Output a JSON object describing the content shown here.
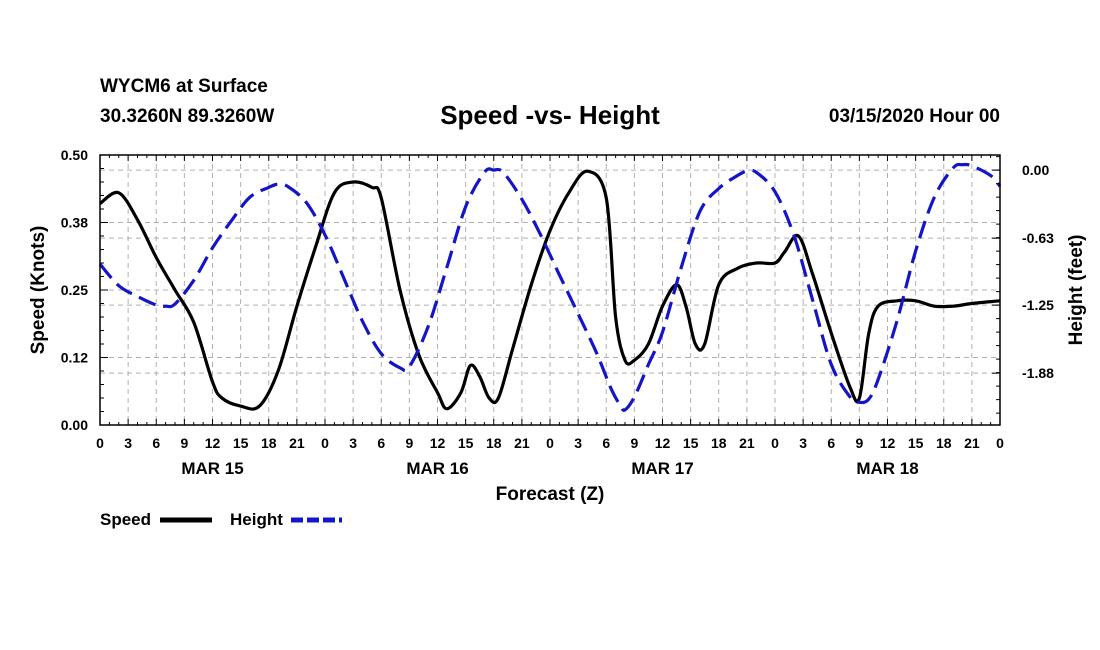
{
  "header": {
    "station": "WYCM6 at Surface",
    "coords": "30.3260N 89.3260W",
    "title": "Speed -vs- Height",
    "run_time": "03/15/2020 Hour 00"
  },
  "legend": {
    "speed_label": "Speed",
    "height_label": "Height"
  },
  "colors": {
    "speed": "#000000",
    "height": "#1515c8",
    "grid": "#b0b0b0"
  },
  "chart_data": {
    "type": "line",
    "title": "Speed -vs- Height",
    "xlabel": "Forecast (Z)",
    "ylabel_left": "Speed (Knots)",
    "ylabel_right": "Height (feet)",
    "xlim": [
      0,
      96
    ],
    "ylim_left": [
      0,
      0.5
    ],
    "ylim_right": [
      -2.36,
      0.14
    ],
    "yticks_left": [
      "0.00",
      "0.12",
      "0.25",
      "0.38",
      "0.50"
    ],
    "yticks_left_values": [
      0,
      0.125,
      0.25,
      0.375,
      0.5
    ],
    "yticks_right": [
      "0.00",
      "-0.63",
      "-1.25",
      "-1.88"
    ],
    "yticks_right_values": [
      0,
      -0.63,
      -1.25,
      -1.88
    ],
    "x_tick_labels": [
      "0",
      "3",
      "6",
      "9",
      "12",
      "15",
      "18",
      "21",
      "0",
      "3",
      "6",
      "9",
      "12",
      "15",
      "18",
      "21",
      "0",
      "3",
      "6",
      "9",
      "12",
      "15",
      "18",
      "21",
      "0",
      "3",
      "6",
      "9",
      "12",
      "15",
      "18",
      "21",
      "0"
    ],
    "date_labels": [
      {
        "label": "MAR 15",
        "hour": 12
      },
      {
        "label": "MAR 16",
        "hour": 36
      },
      {
        "label": "MAR 17",
        "hour": 60
      },
      {
        "label": "MAR 18",
        "hour": 84
      }
    ],
    "grid": true,
    "series": [
      {
        "name": "Speed",
        "axis": "left",
        "style": "solid",
        "points": [
          [
            0,
            0.41
          ],
          [
            2,
            0.43
          ],
          [
            4,
            0.38
          ],
          [
            6,
            0.31
          ],
          [
            8,
            0.25
          ],
          [
            10,
            0.19
          ],
          [
            12,
            0.08
          ],
          [
            13,
            0.05
          ],
          [
            15,
            0.035
          ],
          [
            17,
            0.035
          ],
          [
            19,
            0.1
          ],
          [
            21,
            0.22
          ],
          [
            23,
            0.33
          ],
          [
            25,
            0.43
          ],
          [
            27,
            0.45
          ],
          [
            29,
            0.44
          ],
          [
            30,
            0.42
          ],
          [
            32,
            0.25
          ],
          [
            34,
            0.13
          ],
          [
            36,
            0.06
          ],
          [
            37,
            0.03
          ],
          [
            38.5,
            0.06
          ],
          [
            39.5,
            0.11
          ],
          [
            40.5,
            0.09
          ],
          [
            41.5,
            0.05
          ],
          [
            42.5,
            0.05
          ],
          [
            44,
            0.14
          ],
          [
            46,
            0.26
          ],
          [
            48,
            0.36
          ],
          [
            50,
            0.43
          ],
          [
            52,
            0.47
          ],
          [
            54,
            0.42
          ],
          [
            55,
            0.2
          ],
          [
            56,
            0.12
          ],
          [
            57,
            0.12
          ],
          [
            58.5,
            0.15
          ],
          [
            60,
            0.22
          ],
          [
            61.5,
            0.26
          ],
          [
            62.5,
            0.22
          ],
          [
            63.5,
            0.15
          ],
          [
            64.5,
            0.15
          ],
          [
            66,
            0.26
          ],
          [
            68,
            0.29
          ],
          [
            70,
            0.3
          ],
          [
            72,
            0.3
          ],
          [
            73,
            0.32
          ],
          [
            74.5,
            0.35
          ],
          [
            76,
            0.28
          ],
          [
            78,
            0.17
          ],
          [
            80,
            0.07
          ],
          [
            81,
            0.05
          ],
          [
            82,
            0.17
          ],
          [
            83,
            0.22
          ],
          [
            85,
            0.23
          ],
          [
            87,
            0.23
          ],
          [
            89,
            0.22
          ],
          [
            91,
            0.22
          ],
          [
            93,
            0.225
          ],
          [
            96,
            0.23
          ]
        ]
      },
      {
        "name": "Height",
        "axis": "right",
        "style": "dashed",
        "points": [
          [
            0,
            -0.87
          ],
          [
            2,
            -1.07
          ],
          [
            4,
            -1.17
          ],
          [
            6,
            -1.25
          ],
          [
            7,
            -1.26
          ],
          [
            8,
            -1.24
          ],
          [
            10,
            -1.02
          ],
          [
            12,
            -0.72
          ],
          [
            14,
            -0.47
          ],
          [
            16,
            -0.25
          ],
          [
            18,
            -0.16
          ],
          [
            19,
            -0.13
          ],
          [
            20,
            -0.15
          ],
          [
            22,
            -0.3
          ],
          [
            24,
            -0.6
          ],
          [
            26,
            -1.0
          ],
          [
            28,
            -1.4
          ],
          [
            30,
            -1.7
          ],
          [
            32,
            -1.83
          ],
          [
            33,
            -1.82
          ],
          [
            35,
            -1.45
          ],
          [
            37,
            -0.9
          ],
          [
            39,
            -0.34
          ],
          [
            41,
            -0.02
          ],
          [
            42,
            0.0
          ],
          [
            43,
            -0.02
          ],
          [
            45,
            -0.27
          ],
          [
            47,
            -0.6
          ],
          [
            49,
            -0.97
          ],
          [
            51,
            -1.33
          ],
          [
            53,
            -1.7
          ],
          [
            54.5,
            -2.02
          ],
          [
            55.5,
            -2.18
          ],
          [
            56,
            -2.22
          ],
          [
            57,
            -2.1
          ],
          [
            58.5,
            -1.8
          ],
          [
            60,
            -1.5
          ],
          [
            62,
            -0.9
          ],
          [
            64,
            -0.38
          ],
          [
            66,
            -0.17
          ],
          [
            68,
            -0.05
          ],
          [
            69,
            -0.01
          ],
          [
            70,
            -0.02
          ],
          [
            72,
            -0.2
          ],
          [
            74,
            -0.6
          ],
          [
            76,
            -1.2
          ],
          [
            78,
            -1.8
          ],
          [
            80,
            -2.1
          ],
          [
            81,
            -2.15
          ],
          [
            82,
            -2.12
          ],
          [
            83,
            -1.94
          ],
          [
            85,
            -1.4
          ],
          [
            87,
            -0.75
          ],
          [
            89,
            -0.25
          ],
          [
            91,
            0.02
          ],
          [
            92,
            0.05
          ],
          [
            93,
            0.04
          ],
          [
            95,
            -0.05
          ],
          [
            96,
            -0.15
          ]
        ]
      }
    ]
  }
}
